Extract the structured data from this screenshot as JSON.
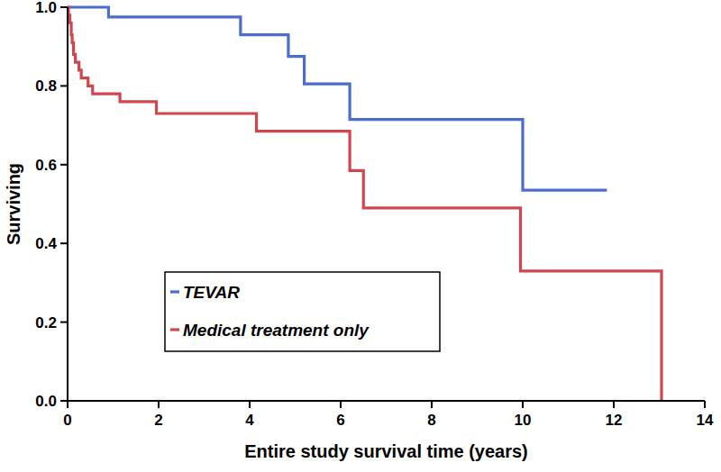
{
  "chart_data": {
    "type": "step",
    "x_label": "Entire study survival time (years)",
    "y_label": "Surviving",
    "xlim": [
      0,
      14
    ],
    "xticks": [
      0,
      2,
      4,
      6,
      8,
      10,
      12,
      14
    ],
    "ylim": [
      0,
      1
    ],
    "yticks": [
      {
        "value": 0,
        "label": "0.0"
      },
      {
        "value": 0.2,
        "label": "0.2"
      },
      {
        "value": 0.4,
        "label": "0.4"
      },
      {
        "value": 0.6,
        "label": "0.6"
      },
      {
        "value": 0.8,
        "label": "0.8"
      },
      {
        "value": 1,
        "label": "1.0"
      }
    ],
    "grid": false,
    "legend": "lower left",
    "series": [
      {
        "name": "TEVAR",
        "color": "#4b6dcb",
        "x": [
          0,
          0.9,
          3.8,
          4.85,
          5.2,
          6.2,
          10.0,
          11.85
        ],
        "values": [
          1.0,
          0.975,
          0.93,
          0.875,
          0.805,
          0.715,
          0.535,
          0.535
        ]
      },
      {
        "name": "Medical treatment only",
        "color": "#d1454e",
        "x": [
          0,
          0.02,
          0.05,
          0.08,
          0.1,
          0.13,
          0.17,
          0.25,
          0.3,
          0.45,
          0.55,
          1.15,
          1.95,
          4.15,
          6.2,
          6.5,
          9.95,
          13.05
        ],
        "values": [
          1.0,
          0.98,
          0.96,
          0.93,
          0.91,
          0.88,
          0.86,
          0.84,
          0.82,
          0.8,
          0.78,
          0.76,
          0.73,
          0.685,
          0.585,
          0.49,
          0.33,
          0.0
        ]
      }
    ]
  }
}
